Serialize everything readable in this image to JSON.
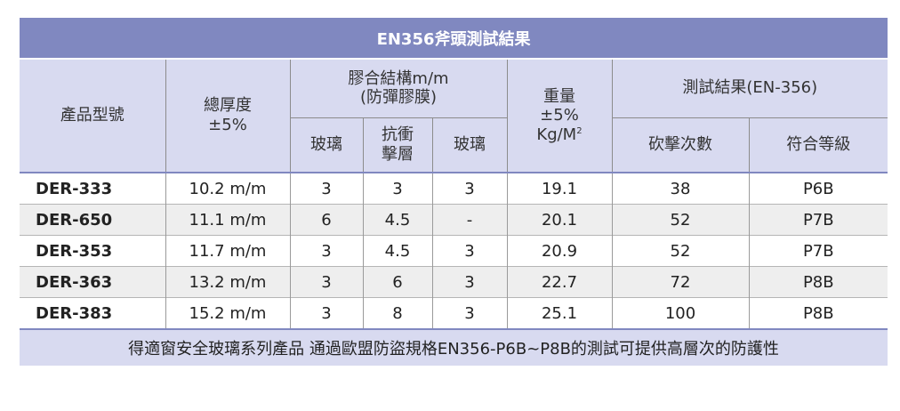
{
  "title": "EN356斧頭測試結果",
  "headers": {
    "model": "產品型號",
    "thickness_line1": "總厚度",
    "thickness_line2": "±5%",
    "structure_line1": "膠合結構m/m",
    "structure_line2": "(防彈膠膜)",
    "glass_a": "玻璃",
    "bond_line1": "抗衝",
    "bond_line2": "擊層",
    "glass_b": "玻璃",
    "weight_line1": "重量",
    "weight_line2": "±5%",
    "weight_line3": "Kg/M",
    "weight_sup": "2",
    "result": "測試結果(EN-356)",
    "strikes": "砍擊次數",
    "grade": "符合等級"
  },
  "rows": [
    {
      "model": "DER-333",
      "thickness": "10.2 m/m",
      "glass_a": "3",
      "bond": "3",
      "glass_b": "3",
      "weight": "19.1",
      "strikes": "38",
      "grade": "P6B"
    },
    {
      "model": "DER-650",
      "thickness": "11.1 m/m",
      "glass_a": "6",
      "bond": "4.5",
      "glass_b": "-",
      "weight": "20.1",
      "strikes": "52",
      "grade": "P7B"
    },
    {
      "model": "DER-353",
      "thickness": "11.7 m/m",
      "glass_a": "3",
      "bond": "4.5",
      "glass_b": "3",
      "weight": "20.9",
      "strikes": "52",
      "grade": "P7B"
    },
    {
      "model": "DER-363",
      "thickness": "13.2 m/m",
      "glass_a": "3",
      "bond": "6",
      "glass_b": "3",
      "weight": "22.7",
      "strikes": "72",
      "grade": "P8B"
    },
    {
      "model": "DER-383",
      "thickness": "15.2 m/m",
      "glass_a": "3",
      "bond": "8",
      "glass_b": "3",
      "weight": "25.1",
      "strikes": "100",
      "grade": "P8B"
    }
  ],
  "footer": "得適窗安全玻璃系列產品  通過歐盟防盜規格EN356-P6B~P8B的測試可提供高層次的防護性",
  "colors": {
    "title_bg": "#8088c0",
    "header_bg": "#d8daf0",
    "row_alt": "#eeeeee"
  }
}
